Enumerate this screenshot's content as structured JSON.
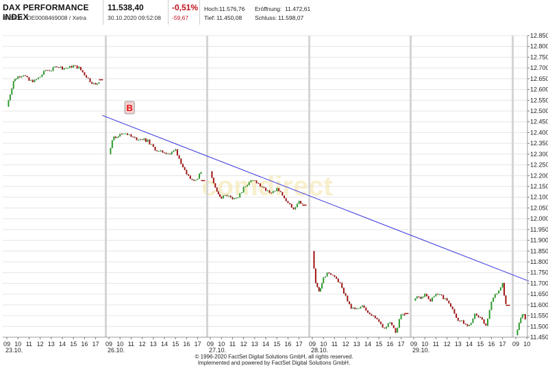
{
  "header": {
    "index_name": "DAX PERFORMANCE INDEX",
    "identifiers": "846900 / DE0008469008 / Xetra",
    "price": "11.538,40",
    "timestamp": "30.10.2020 09:52:08",
    "change_pct": "-0,51%",
    "change_abs": "-59,67",
    "high_label": "Hoch:",
    "high_value": "11.576,76",
    "open_label": "Eröffnung:",
    "open_value": "11.472,61",
    "low_label": "Tief:",
    "low_value": "11.450,08",
    "close_label": "Schluss:",
    "close_value": "11.598,07"
  },
  "footer": {
    "line1": "© 1996-2020 FactSet Digital Solutions GmbH, all rights reserved.",
    "line2": "Implemented and powered by FactSet Digital Solutions GmbH."
  },
  "watermark": "comdirect",
  "colors": {
    "up": "#2a9a2a",
    "down": "#a01010",
    "trendline": "#3333dd",
    "marker_text": "#e01010"
  },
  "chart_data": {
    "type": "candlestick-intraday",
    "ylim": [
      11450,
      12850
    ],
    "y_ticks": [
      "12.850",
      "12.800",
      "12.750",
      "12.700",
      "12.650",
      "12.600",
      "12.550",
      "12.500",
      "12.450",
      "12.400",
      "12.350",
      "12.300",
      "12.250",
      "12.200",
      "12.150",
      "12.100",
      "12.050",
      "12.000",
      "11.950",
      "11.900",
      "11.850",
      "11.800",
      "11.750",
      "11.700",
      "11.650",
      "11.600",
      "11.550",
      "11.500",
      "11.450"
    ],
    "y_tick_values": [
      12850,
      12800,
      12750,
      12700,
      12650,
      12600,
      12550,
      12500,
      12450,
      12400,
      12350,
      12300,
      12250,
      12200,
      12150,
      12100,
      12050,
      12000,
      11950,
      11900,
      11850,
      11800,
      11750,
      11700,
      11650,
      11600,
      11550,
      11500,
      11450
    ],
    "grid": true,
    "days": [
      {
        "date": "23.10.",
        "hour_labels": [
          "09",
          "10",
          "11",
          "12",
          "13",
          "14",
          "15",
          "16",
          "17"
        ],
        "path": [
          [
            9,
            12520
          ],
          [
            9.3,
            12580
          ],
          [
            9.6,
            12640
          ],
          [
            10,
            12660
          ],
          [
            10.5,
            12670
          ],
          [
            11,
            12640
          ],
          [
            11.5,
            12640
          ],
          [
            12,
            12660
          ],
          [
            12.5,
            12690
          ],
          [
            13,
            12690
          ],
          [
            13.5,
            12710
          ],
          [
            14,
            12700
          ],
          [
            14.5,
            12700
          ],
          [
            15,
            12710
          ],
          [
            15.5,
            12700
          ],
          [
            16,
            12670
          ],
          [
            16.5,
            12640
          ],
          [
            17,
            12620
          ],
          [
            17.3,
            12640
          ]
        ],
        "close": 12645
      },
      {
        "date": "26.10.",
        "hour_labels": [
          "09",
          "10",
          "11",
          "12",
          "13",
          "14",
          "15",
          "16",
          "17"
        ],
        "path": [
          [
            9,
            12300
          ],
          [
            9.3,
            12370
          ],
          [
            9.6,
            12380
          ],
          [
            10,
            12390
          ],
          [
            10.5,
            12400
          ],
          [
            11,
            12380
          ],
          [
            11.5,
            12370
          ],
          [
            12,
            12370
          ],
          [
            12.5,
            12360
          ],
          [
            13,
            12330
          ],
          [
            13.5,
            12310
          ],
          [
            14,
            12310
          ],
          [
            14.5,
            12300
          ],
          [
            15,
            12320
          ],
          [
            15.5,
            12260
          ],
          [
            16,
            12200
          ],
          [
            16.5,
            12180
          ],
          [
            17,
            12190
          ],
          [
            17.3,
            12220
          ]
        ],
        "close": 12177
      },
      {
        "date": "27.10.",
        "hour_labels": [
          "09",
          "10",
          "11",
          "12",
          "13",
          "14",
          "15",
          "16",
          "17"
        ],
        "path": [
          [
            9,
            12220
          ],
          [
            9.3,
            12160
          ],
          [
            9.6,
            12120
          ],
          [
            10,
            12100
          ],
          [
            10.5,
            12110
          ],
          [
            11,
            12090
          ],
          [
            11.5,
            12100
          ],
          [
            12,
            12140
          ],
          [
            12.5,
            12170
          ],
          [
            13,
            12180
          ],
          [
            13.5,
            12150
          ],
          [
            14,
            12130
          ],
          [
            14.5,
            12120
          ],
          [
            15,
            12140
          ],
          [
            15.5,
            12110
          ],
          [
            16,
            12070
          ],
          [
            16.5,
            12050
          ],
          [
            17,
            12080
          ],
          [
            17.3,
            12070
          ]
        ],
        "close": 12063
      },
      {
        "date": "28.10.",
        "hour_labels": [
          "09",
          "10",
          "11",
          "12",
          "13",
          "14",
          "15",
          "16",
          "17"
        ],
        "path": [
          [
            9,
            11850
          ],
          [
            9.3,
            11700
          ],
          [
            9.6,
            11660
          ],
          [
            10,
            11730
          ],
          [
            10.5,
            11750
          ],
          [
            11,
            11730
          ],
          [
            11.5,
            11700
          ],
          [
            12,
            11640
          ],
          [
            12.5,
            11590
          ],
          [
            13,
            11580
          ],
          [
            13.5,
            11600
          ],
          [
            14,
            11560
          ],
          [
            14.5,
            11550
          ],
          [
            15,
            11520
          ],
          [
            15.5,
            11490
          ],
          [
            16,
            11520
          ],
          [
            16.5,
            11470
          ],
          [
            17,
            11560
          ],
          [
            17.3,
            11550
          ]
        ],
        "close": 11560
      },
      {
        "date": "29.10.",
        "hour_labels": [
          "09",
          "10",
          "11",
          "12",
          "13",
          "14",
          "15",
          "16",
          "17"
        ],
        "path": [
          [
            9,
            11620
          ],
          [
            9.3,
            11640
          ],
          [
            9.6,
            11630
          ],
          [
            10,
            11650
          ],
          [
            10.5,
            11620
          ],
          [
            11,
            11650
          ],
          [
            11.5,
            11640
          ],
          [
            12,
            11620
          ],
          [
            12.5,
            11580
          ],
          [
            13,
            11530
          ],
          [
            13.5,
            11520
          ],
          [
            14,
            11500
          ],
          [
            14.5,
            11560
          ],
          [
            15,
            11540
          ],
          [
            15.5,
            11500
          ],
          [
            16,
            11620
          ],
          [
            16.5,
            11660
          ],
          [
            17,
            11700
          ],
          [
            17.3,
            11600
          ]
        ],
        "close": 11598
      },
      {
        "date": "",
        "hour_labels": [
          "09",
          "10"
        ],
        "path": [
          [
            9,
            11460
          ],
          [
            9.3,
            11520
          ],
          [
            9.6,
            11560
          ],
          [
            9.85,
            11540
          ]
        ],
        "close": null
      }
    ],
    "trendline": {
      "from": {
        "day": 1,
        "hour": 8.4,
        "value": 12480
      },
      "to": {
        "day": 5,
        "hour": 10.2,
        "value": 11710
      }
    },
    "marker": {
      "label": "B",
      "day": 1,
      "hour": 10.8,
      "value": 12430
    }
  }
}
